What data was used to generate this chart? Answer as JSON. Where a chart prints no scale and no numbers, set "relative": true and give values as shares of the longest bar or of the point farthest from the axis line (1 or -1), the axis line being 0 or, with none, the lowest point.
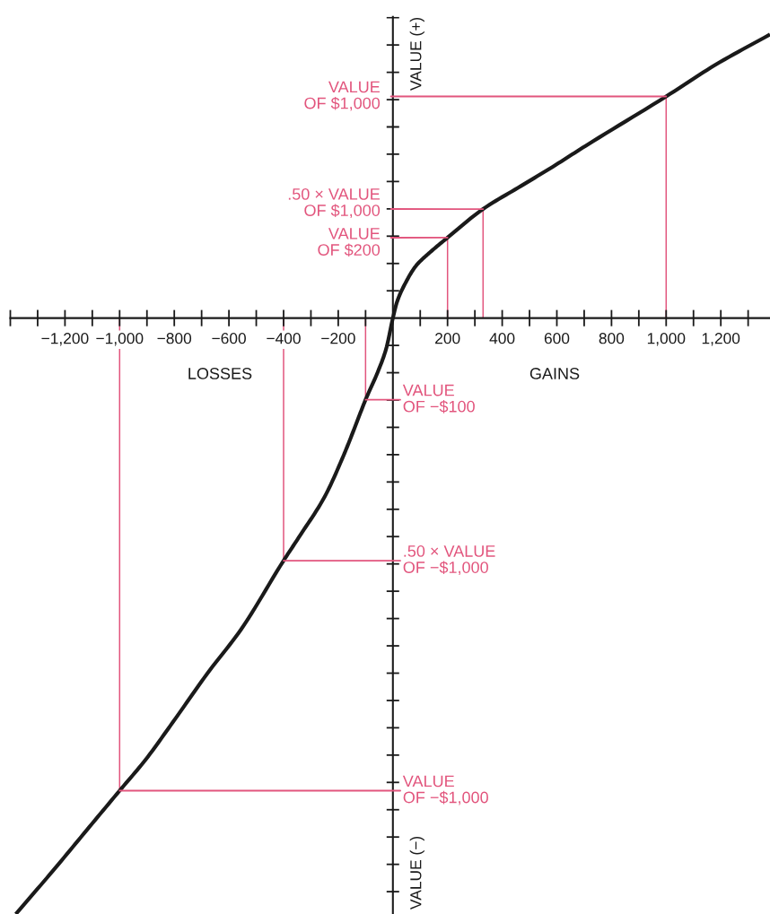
{
  "chart_data": {
    "type": "line",
    "relative": true,
    "x": [
      -1380,
      -1245,
      -1120,
      -1000,
      -905,
      -805,
      -680,
      -555,
      -400,
      -340,
      -250,
      -180,
      -145,
      -100,
      -55,
      -25,
      0,
      15,
      45,
      85,
      135,
      200,
      330,
      470,
      585,
      705,
      1000,
      1180,
      1380
    ],
    "series": [
      {
        "color": "#1a1a1a",
        "values": [
          -1,
          -0.928,
          -0.859,
          -0.793,
          -0.741,
          -0.678,
          -0.597,
          -0.522,
          -0.407,
          -0.365,
          -0.3,
          -0.23,
          -0.19,
          -0.137,
          -0.09,
          -0.052,
          0,
          0.027,
          0.058,
          0.088,
          0.11,
          0.135,
          0.183,
          0.222,
          0.254,
          0.289,
          0.372,
          0.425,
          0.476
        ]
      },
      {
        "type": "bar",
        "color": "#e2557d",
        "x": [
          1000,
          330,
          200,
          -100,
          -400,
          -1000
        ],
        "values": [
          0.372,
          0.183,
          0.135,
          -0.137,
          -0.407,
          -0.793
        ]
      }
    ],
    "xlim": [
      -1400,
      1380
    ],
    "xticks": [
      {
        "value": -1400,
        "label": null
      },
      {
        "value": -1300,
        "label": null
      },
      {
        "value": -1200,
        "label": "−1,200"
      },
      {
        "value": -1100,
        "label": null
      },
      {
        "value": -1000,
        "label": "−1,000"
      },
      {
        "value": -900,
        "label": null
      },
      {
        "value": -800,
        "label": "−800"
      },
      {
        "value": -700,
        "label": null
      },
      {
        "value": -600,
        "label": "−600"
      },
      {
        "value": -500,
        "label": null
      },
      {
        "value": -400,
        "label": "−400"
      },
      {
        "value": -300,
        "label": null
      },
      {
        "value": -200,
        "label": "−200"
      },
      {
        "value": -100,
        "label": null
      },
      {
        "value": 100,
        "label": null
      },
      200,
      {
        "value": 300,
        "label": null
      },
      400,
      {
        "value": 500,
        "label": null
      },
      600,
      {
        "value": 700,
        "label": null
      },
      800,
      {
        "value": 900,
        "label": null
      },
      {
        "value": 1000,
        "label": "1,000"
      },
      {
        "value": 1100,
        "label": null
      },
      {
        "value": 1200,
        "label": "1,200"
      },
      {
        "value": 1300,
        "label": null
      }
    ],
    "annotations": [
      {
        "text": "VALUE\nOF $1,000",
        "x": 1000,
        "y": 0.372
      },
      {
        "text": ".50 × VALUE\nOF $1,000",
        "x": 330,
        "y": 0.183
      },
      {
        "text": "VALUE\nOF $200",
        "x": 200,
        "y": 0.135
      },
      {
        "text": "VALUE\nOF −$100",
        "x": -100,
        "y": -0.137
      },
      {
        "text": ".50 × VALUE\nOF −$1,000",
        "x": -400,
        "y": -0.407
      },
      {
        "text": "VALUE\nOF −$1,000",
        "x": -1000,
        "y": -0.793
      },
      "VALUE (+)",
      "VALUE (−)",
      "LOSSES",
      "GAINS"
    ]
  }
}
